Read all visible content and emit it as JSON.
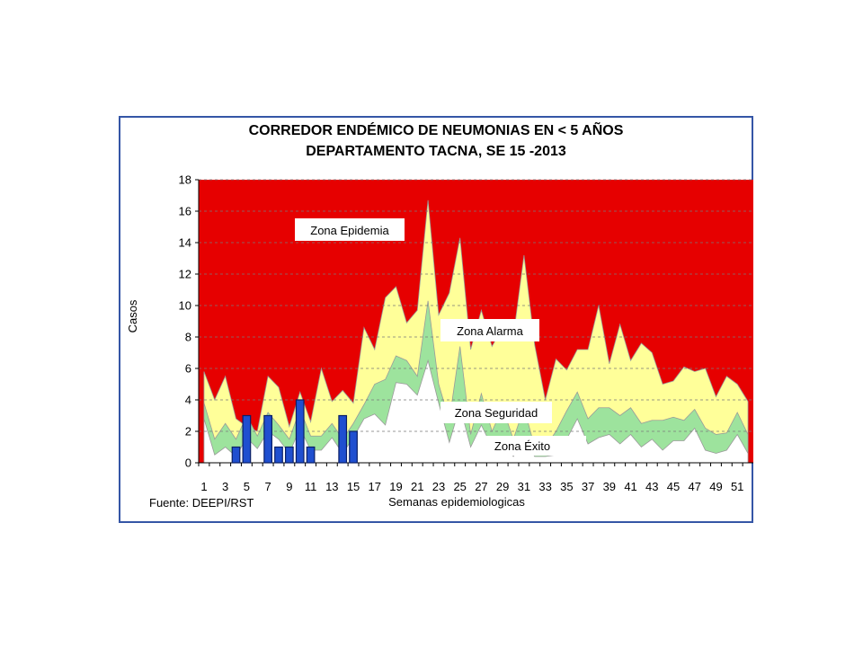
{
  "chart_data": {
    "type": "area",
    "title_line1": "CORREDOR ENDÉMICO DE NEUMONIAS EN < 5 AÑOS",
    "title_line2": "DEPARTAMENTO TACNA,  SE 15 -2013",
    "ylabel": "Casos",
    "xlabel": "Semanas epidemiologicas",
    "source": "Fuente: DEEPI/RST",
    "ylim": [
      0,
      18
    ],
    "yticks": [
      "0",
      "2",
      "4",
      "6",
      "8",
      "10",
      "12",
      "14",
      "16",
      "18"
    ],
    "xlim": [
      1,
      52
    ],
    "xtick_labels": [
      "1",
      "3",
      "5",
      "7",
      "9",
      "11",
      "13",
      "15",
      "17",
      "19",
      "21",
      "23",
      "25",
      "27",
      "29",
      "31",
      "33",
      "35",
      "37",
      "39",
      "41",
      "43",
      "45",
      "47",
      "49",
      "51"
    ],
    "x": [
      1,
      2,
      3,
      4,
      5,
      6,
      7,
      8,
      9,
      10,
      11,
      12,
      13,
      14,
      15,
      16,
      17,
      18,
      19,
      20,
      21,
      22,
      23,
      24,
      25,
      26,
      27,
      28,
      29,
      30,
      31,
      32,
      33,
      34,
      35,
      36,
      37,
      38,
      39,
      40,
      41,
      42,
      43,
      44,
      45,
      46,
      47,
      48,
      49,
      50,
      51,
      52
    ],
    "series": [
      {
        "role": "exito_upper",
        "color": "#ffffff",
        "values": [
          2.8,
          0.5,
          1.0,
          0.4,
          1.6,
          0.9,
          2.0,
          1.5,
          0.6,
          2.2,
          0.8,
          0.8,
          1.6,
          0.6,
          1.6,
          2.8,
          3.1,
          2.4,
          5.1,
          5.0,
          4.3,
          6.5,
          3.8,
          1.3,
          3.6,
          1.0,
          2.4,
          1.0,
          1.6,
          0.4,
          1.5,
          0.4,
          0.4,
          0.5,
          1.5,
          2.8,
          1.2,
          1.6,
          1.8,
          1.2,
          1.8,
          1.0,
          1.5,
          0.8,
          1.4,
          1.4,
          2.2,
          0.8,
          0.6,
          0.8,
          1.8,
          0.6
        ]
      },
      {
        "role": "seguridad_upper",
        "color": "#9de39d",
        "values": [
          3.8,
          1.5,
          2.5,
          1.5,
          3.0,
          1.7,
          3.2,
          2.4,
          1.5,
          3.4,
          1.7,
          1.7,
          2.5,
          1.5,
          2.5,
          3.7,
          5.0,
          5.3,
          6.8,
          6.5,
          5.5,
          10.3,
          5.0,
          2.7,
          7.4,
          1.8,
          4.4,
          2.0,
          3.5,
          1.5,
          3.5,
          1.0,
          1.0,
          2.0,
          3.3,
          4.5,
          2.8,
          3.5,
          3.5,
          3.0,
          3.5,
          2.5,
          2.7,
          2.7,
          2.9,
          2.7,
          3.4,
          2.2,
          1.8,
          1.9,
          3.2,
          1.8
        ]
      },
      {
        "role": "alarma_upper",
        "color": "#ffff99",
        "values": [
          5.8,
          4.0,
          5.5,
          2.8,
          2.3,
          2.0,
          5.5,
          4.8,
          2.3,
          4.5,
          2.6,
          6.0,
          3.9,
          4.6,
          3.8,
          8.6,
          7.2,
          10.5,
          11.2,
          8.9,
          9.7,
          16.7,
          9.4,
          10.8,
          14.3,
          7.2,
          9.7,
          7.4,
          8.6,
          8.0,
          13.2,
          7.5,
          4.0,
          6.6,
          5.9,
          7.2,
          7.2,
          10.0,
          6.3,
          8.8,
          6.5,
          7.6,
          7.0,
          5.0,
          5.2,
          6.1,
          5.8,
          6.0,
          4.2,
          5.5,
          5.0,
          3.9
        ]
      }
    ],
    "bars": {
      "color": "#1f4fd0",
      "values": [
        0,
        0,
        0,
        1,
        3,
        0,
        3,
        1,
        1,
        4,
        1,
        0,
        0,
        3,
        2,
        0,
        0,
        0,
        0,
        0,
        0,
        0,
        0,
        0,
        0,
        0,
        0,
        0,
        0,
        0,
        0,
        0,
        0,
        0,
        0,
        0,
        0,
        0,
        0,
        0,
        0,
        0,
        0,
        0,
        0,
        0,
        0,
        0,
        0,
        0,
        0,
        0
      ]
    },
    "epidemia_color": "#e60000",
    "zone_labels": {
      "epidemia": "Zona Epidemia",
      "alarma": "Zona Alarma",
      "seguridad": "Zona Seguridad",
      "exito": "Zona Éxito"
    },
    "grid": "horizontal dashed",
    "legend": "none"
  }
}
